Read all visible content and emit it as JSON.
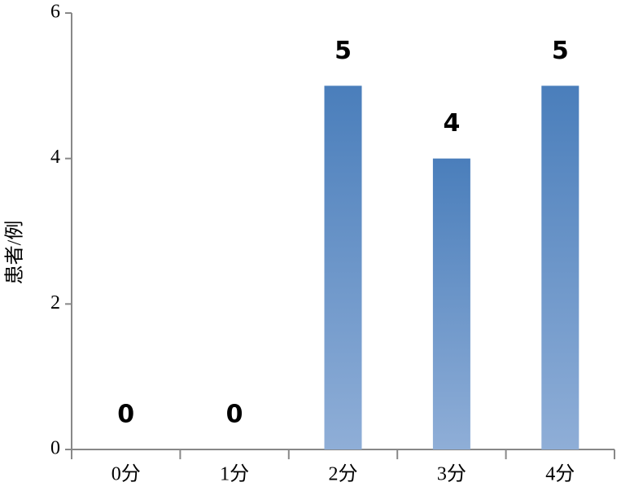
{
  "chart_data": {
    "type": "bar",
    "y_label": "患者/例",
    "categories": [
      "0分",
      "1分",
      "2分",
      "3分",
      "4分"
    ],
    "values": [
      0,
      0,
      5,
      4,
      5
    ],
    "color": "#4a7ebb",
    "ylim": [
      0,
      6
    ],
    "yticks": [
      0,
      2,
      4,
      6
    ],
    "grid": false
  }
}
